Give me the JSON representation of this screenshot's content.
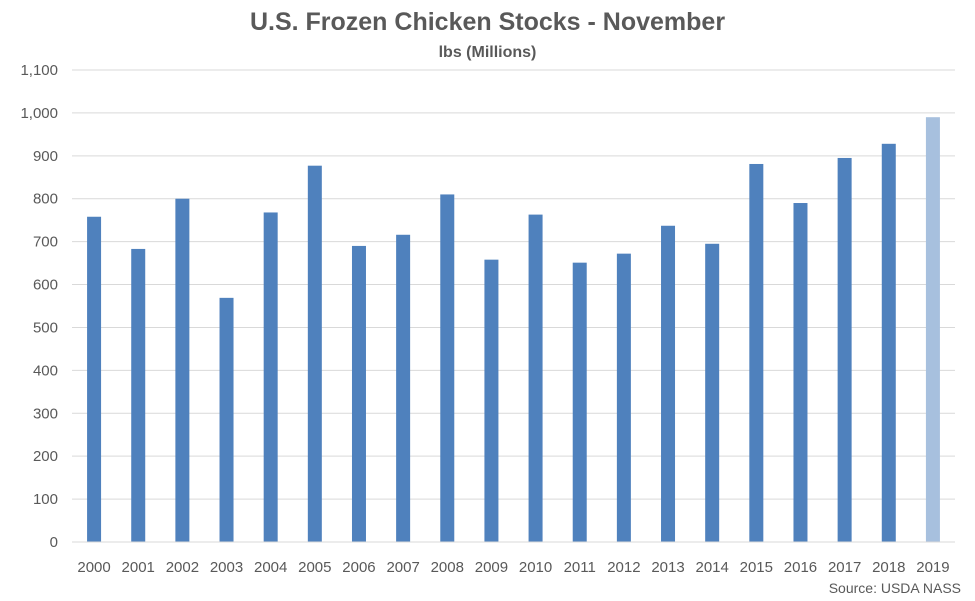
{
  "chart_data": {
    "type": "bar",
    "title": "U.S. Frozen Chicken Stocks - November",
    "subtitle": "lbs (Millions)",
    "xlabel": "",
    "ylabel": "",
    "categories": [
      "2000",
      "2001",
      "2002",
      "2003",
      "2004",
      "2005",
      "2006",
      "2007",
      "2008",
      "2009",
      "2010",
      "2011",
      "2012",
      "2013",
      "2014",
      "2015",
      "2016",
      "2017",
      "2018",
      "2019"
    ],
    "values": [
      758,
      683,
      800,
      569,
      768,
      877,
      690,
      716,
      810,
      658,
      763,
      651,
      672,
      737,
      695,
      881,
      790,
      895,
      928,
      990
    ],
    "ylim": [
      0,
      1100
    ],
    "yticks": [
      "0",
      "100",
      "200",
      "300",
      "400",
      "500",
      "600",
      "700",
      "800",
      "900",
      "1,000",
      "1,100"
    ],
    "grid": true,
    "legend": "none",
    "colors": {
      "bar": "#4F81BD",
      "highlight_bar": "#A7C0DE",
      "grid": "#D9D9D9",
      "text": "#595959"
    },
    "highlight_index": 19
  },
  "footer": {
    "source": "Source: USDA NASS"
  }
}
